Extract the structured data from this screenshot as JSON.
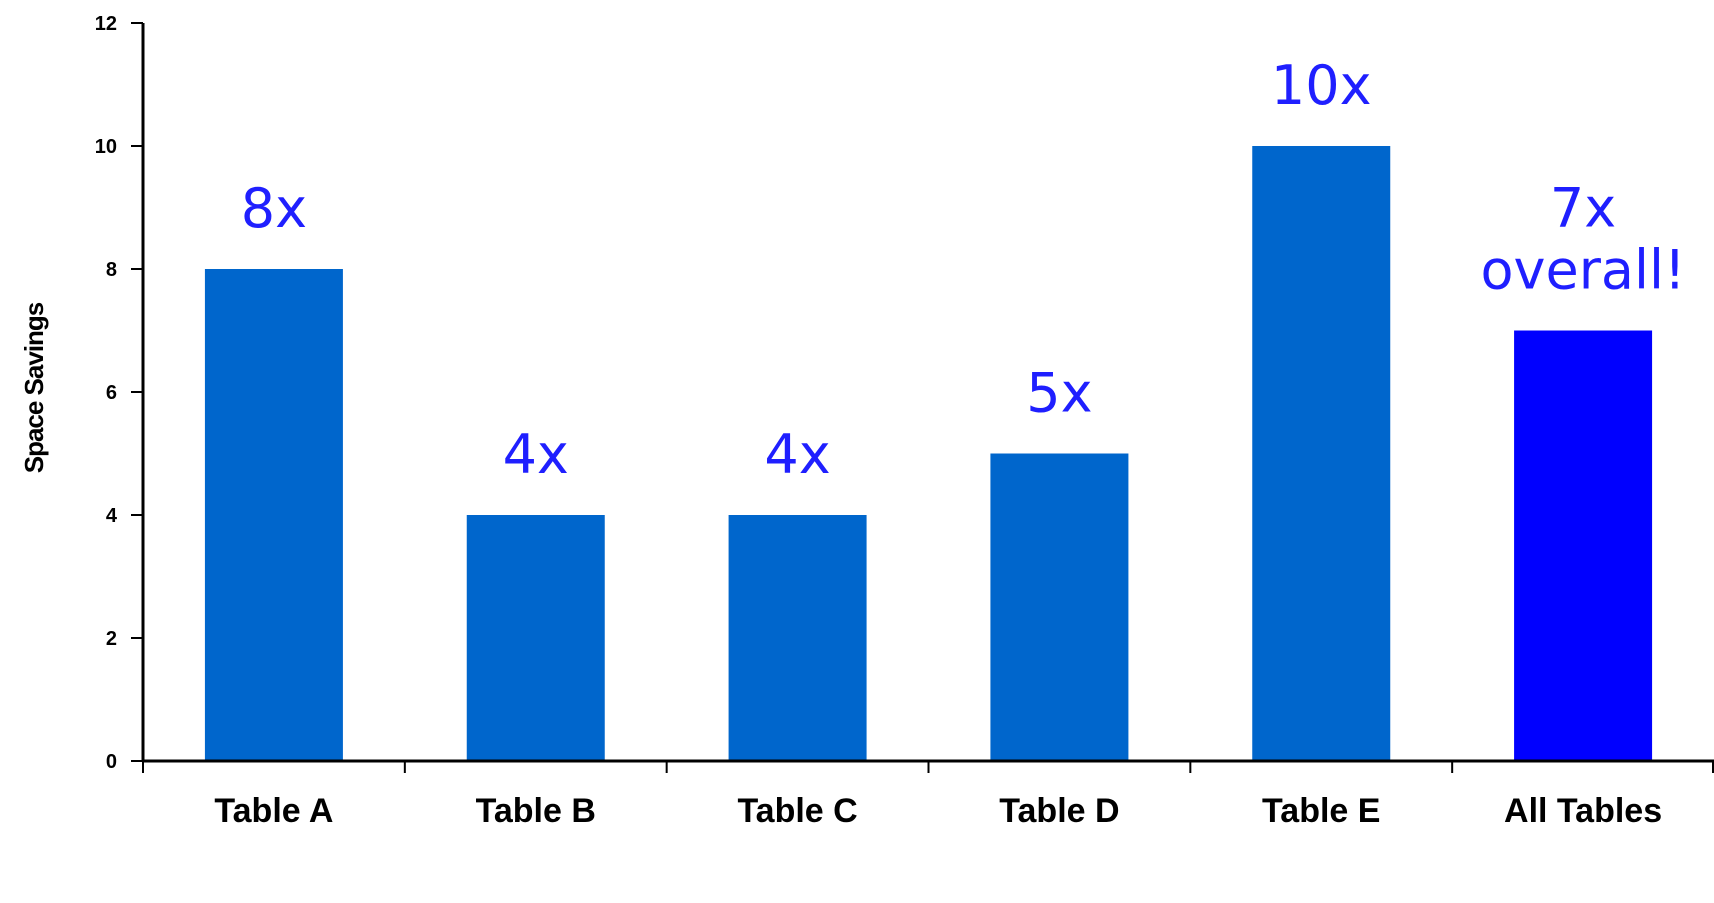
{
  "chart_data": {
    "type": "bar",
    "title": "",
    "xlabel": "",
    "ylabel": "Space Savings",
    "ylim": [
      0,
      12
    ],
    "yticks": [
      0,
      2,
      4,
      6,
      8,
      10,
      12
    ],
    "grid": false,
    "legend": "none",
    "categories": [
      "Table A",
      "Table B",
      "Table C",
      "Table D",
      "Table E",
      "All Tables"
    ],
    "values": [
      8,
      4,
      4,
      5,
      10,
      7
    ],
    "data_labels": [
      [
        "8x"
      ],
      [
        "4x"
      ],
      [
        "4x"
      ],
      [
        "5x"
      ],
      [
        "10x"
      ],
      [
        "7x",
        "overall!"
      ]
    ],
    "bar_colors": [
      "#0066CC",
      "#0066CC",
      "#0066CC",
      "#0066CC",
      "#0066CC",
      "#0000FF"
    ],
    "data_label_color": "#1F1FFF",
    "axis_color": "#000000"
  }
}
